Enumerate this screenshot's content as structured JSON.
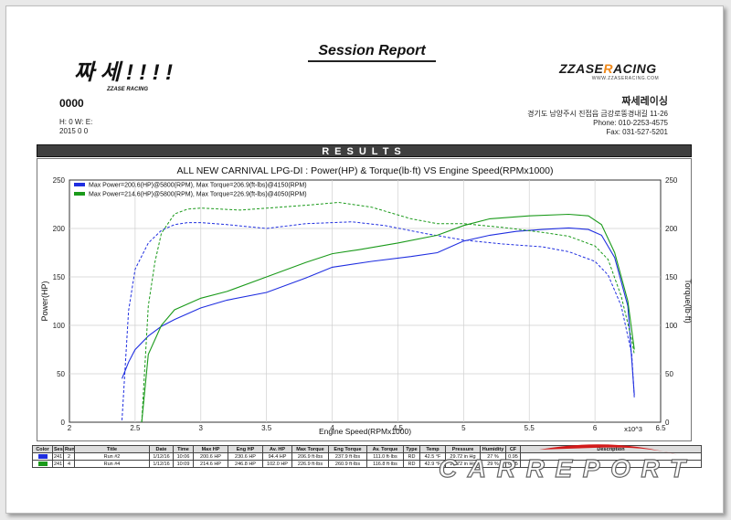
{
  "header": {
    "title": "Session Report",
    "code": "0000",
    "meta_line1": "H:  0    W:        E:",
    "meta_line2": "2015 0 0",
    "left_logo_text": "짜세!!!!",
    "left_logo_sub": "ZZASE RACING",
    "right_logo": {
      "pre": "ZZASE",
      "accent": "R",
      "post": "ACING",
      "sub": "WWW.ZZASERACING.COM"
    },
    "shop_name": "짜세레이싱",
    "shop_address": "경기도 남양주시 진접읍 금강로뚱경내길 11-26",
    "shop_phone": "Phone: 010-2253-4575",
    "shop_fax": "Fax:     031-527-5201"
  },
  "results_label": "RESULTS",
  "chart_data": {
    "type": "line",
    "title": "ALL NEW CARNIVAL LPG-DI : Power(HP) & Torque(lb·ft) VS Engine Speed(RPMx1000)",
    "xlabel": "Engine Speed(RPMx1000)",
    "x_multiplier": "x10^3",
    "ylabel_left": "Power(HP)",
    "ylabel_right": "Torque(lb·ft)",
    "xlim": [
      2,
      6.5
    ],
    "ylim_left": [
      0,
      250
    ],
    "ylim_right": [
      0,
      250
    ],
    "x_ticks": [
      "2",
      "2.5",
      "3",
      "3.5",
      "4",
      "4.5",
      "5",
      "5.5",
      "6",
      "6.5"
    ],
    "y_ticks": [
      "0",
      "50",
      "100",
      "150",
      "200",
      "250"
    ],
    "grid": true,
    "legend_position": "top-left",
    "series": [
      {
        "name": "Max Power=200.6(HP)@5800(RPM), Max Torque=206.9(ft-lbs)@4150(RPM)",
        "color": "#1f2ee0",
        "power": {
          "x": [
            2.4,
            2.45,
            2.5,
            2.6,
            2.7,
            2.8,
            3.0,
            3.2,
            3.5,
            3.8,
            4.0,
            4.3,
            4.6,
            4.8,
            5.0,
            5.2,
            5.4,
            5.6,
            5.8,
            5.95,
            6.05,
            6.15,
            6.25,
            6.3
          ],
          "y": [
            45,
            62,
            75,
            89,
            99,
            106,
            118,
            126,
            134,
            149,
            160,
            166,
            171,
            175,
            187,
            193,
            197,
            199,
            200.6,
            199,
            193,
            170,
            120,
            28
          ]
        },
        "torque": {
          "x": [
            2.4,
            2.45,
            2.5,
            2.6,
            2.7,
            2.8,
            2.9,
            3.0,
            3.2,
            3.5,
            3.8,
            4.0,
            4.15,
            4.4,
            4.7,
            5.0,
            5.3,
            5.6,
            5.8,
            6.0,
            6.1,
            6.2,
            6.28,
            6.3
          ],
          "y": [
            2,
            115,
            158,
            185,
            198,
            204,
            206,
            206,
            204,
            200,
            205,
            206,
            206.9,
            203,
            195,
            188,
            184,
            181,
            176,
            166,
            152,
            120,
            70,
            25
          ]
        }
      },
      {
        "name": "Max Power=214.6(HP)@5800(RPM), Max Torque=226.9(ft-lbs)@4050(RPM)",
        "color": "#1a9a1a",
        "power": {
          "x": [
            2.55,
            2.6,
            2.7,
            2.8,
            3.0,
            3.2,
            3.5,
            3.8,
            4.0,
            4.2,
            4.5,
            4.8,
            5.0,
            5.2,
            5.5,
            5.8,
            5.95,
            6.05,
            6.15,
            6.25,
            6.3
          ],
          "y": [
            0,
            70,
            100,
            116,
            128,
            135,
            150,
            165,
            174,
            178,
            185,
            193,
            203,
            210,
            213,
            214.6,
            213,
            204,
            175,
            125,
            75
          ]
        },
        "torque": {
          "x": [
            2.55,
            2.6,
            2.65,
            2.7,
            2.8,
            2.9,
            3.0,
            3.3,
            3.6,
            3.8,
            4.05,
            4.3,
            4.6,
            4.8,
            5.0,
            5.3,
            5.6,
            5.8,
            6.0,
            6.1,
            6.2,
            6.28,
            6.3
          ],
          "y": [
            0,
            120,
            165,
            195,
            215,
            220,
            221,
            219,
            222,
            224,
            226.9,
            222,
            210,
            205,
            205,
            201,
            196,
            192,
            182,
            168,
            130,
            85,
            70
          ]
        }
      }
    ]
  },
  "results_table": {
    "headers": [
      "Color",
      "Ses",
      "Run",
      "Title",
      "Date",
      "Time",
      "Max HP",
      "Eng HP",
      "Av. HP",
      "Max Torque",
      "Eng Torque",
      "Av. Torque",
      "Type",
      "Temp",
      "Pressure",
      "Humidity",
      "CF",
      "Description"
    ],
    "rows": [
      {
        "color": "#1f2ee0",
        "cells": [
          "241",
          "2",
          "Run #2",
          "1/12/16",
          "10:06",
          "200.6 HP",
          "230.6 HP",
          "94.4 HP",
          "206.9 ft·lbs",
          "237.9 ft·lbs",
          "111.0 ft·lbs",
          "RD",
          "42.5 °F",
          "29.72 in Hg",
          "27 %",
          "0.95",
          ""
        ]
      },
      {
        "color": "#1a9a1a",
        "cells": [
          "241",
          "4",
          "Run #4",
          "1/12/16",
          "10:09",
          "214.6 HP",
          "246.8 HP",
          "102.0 HP",
          "226.9 ft·lbs",
          "260.9 ft·lbs",
          "116.8 ft·lbs",
          "RD",
          "42.9 °F",
          "29.72 in Hg",
          "29 %",
          "0.95",
          ""
        ]
      }
    ]
  },
  "watermark_text": "CARREPORT"
}
